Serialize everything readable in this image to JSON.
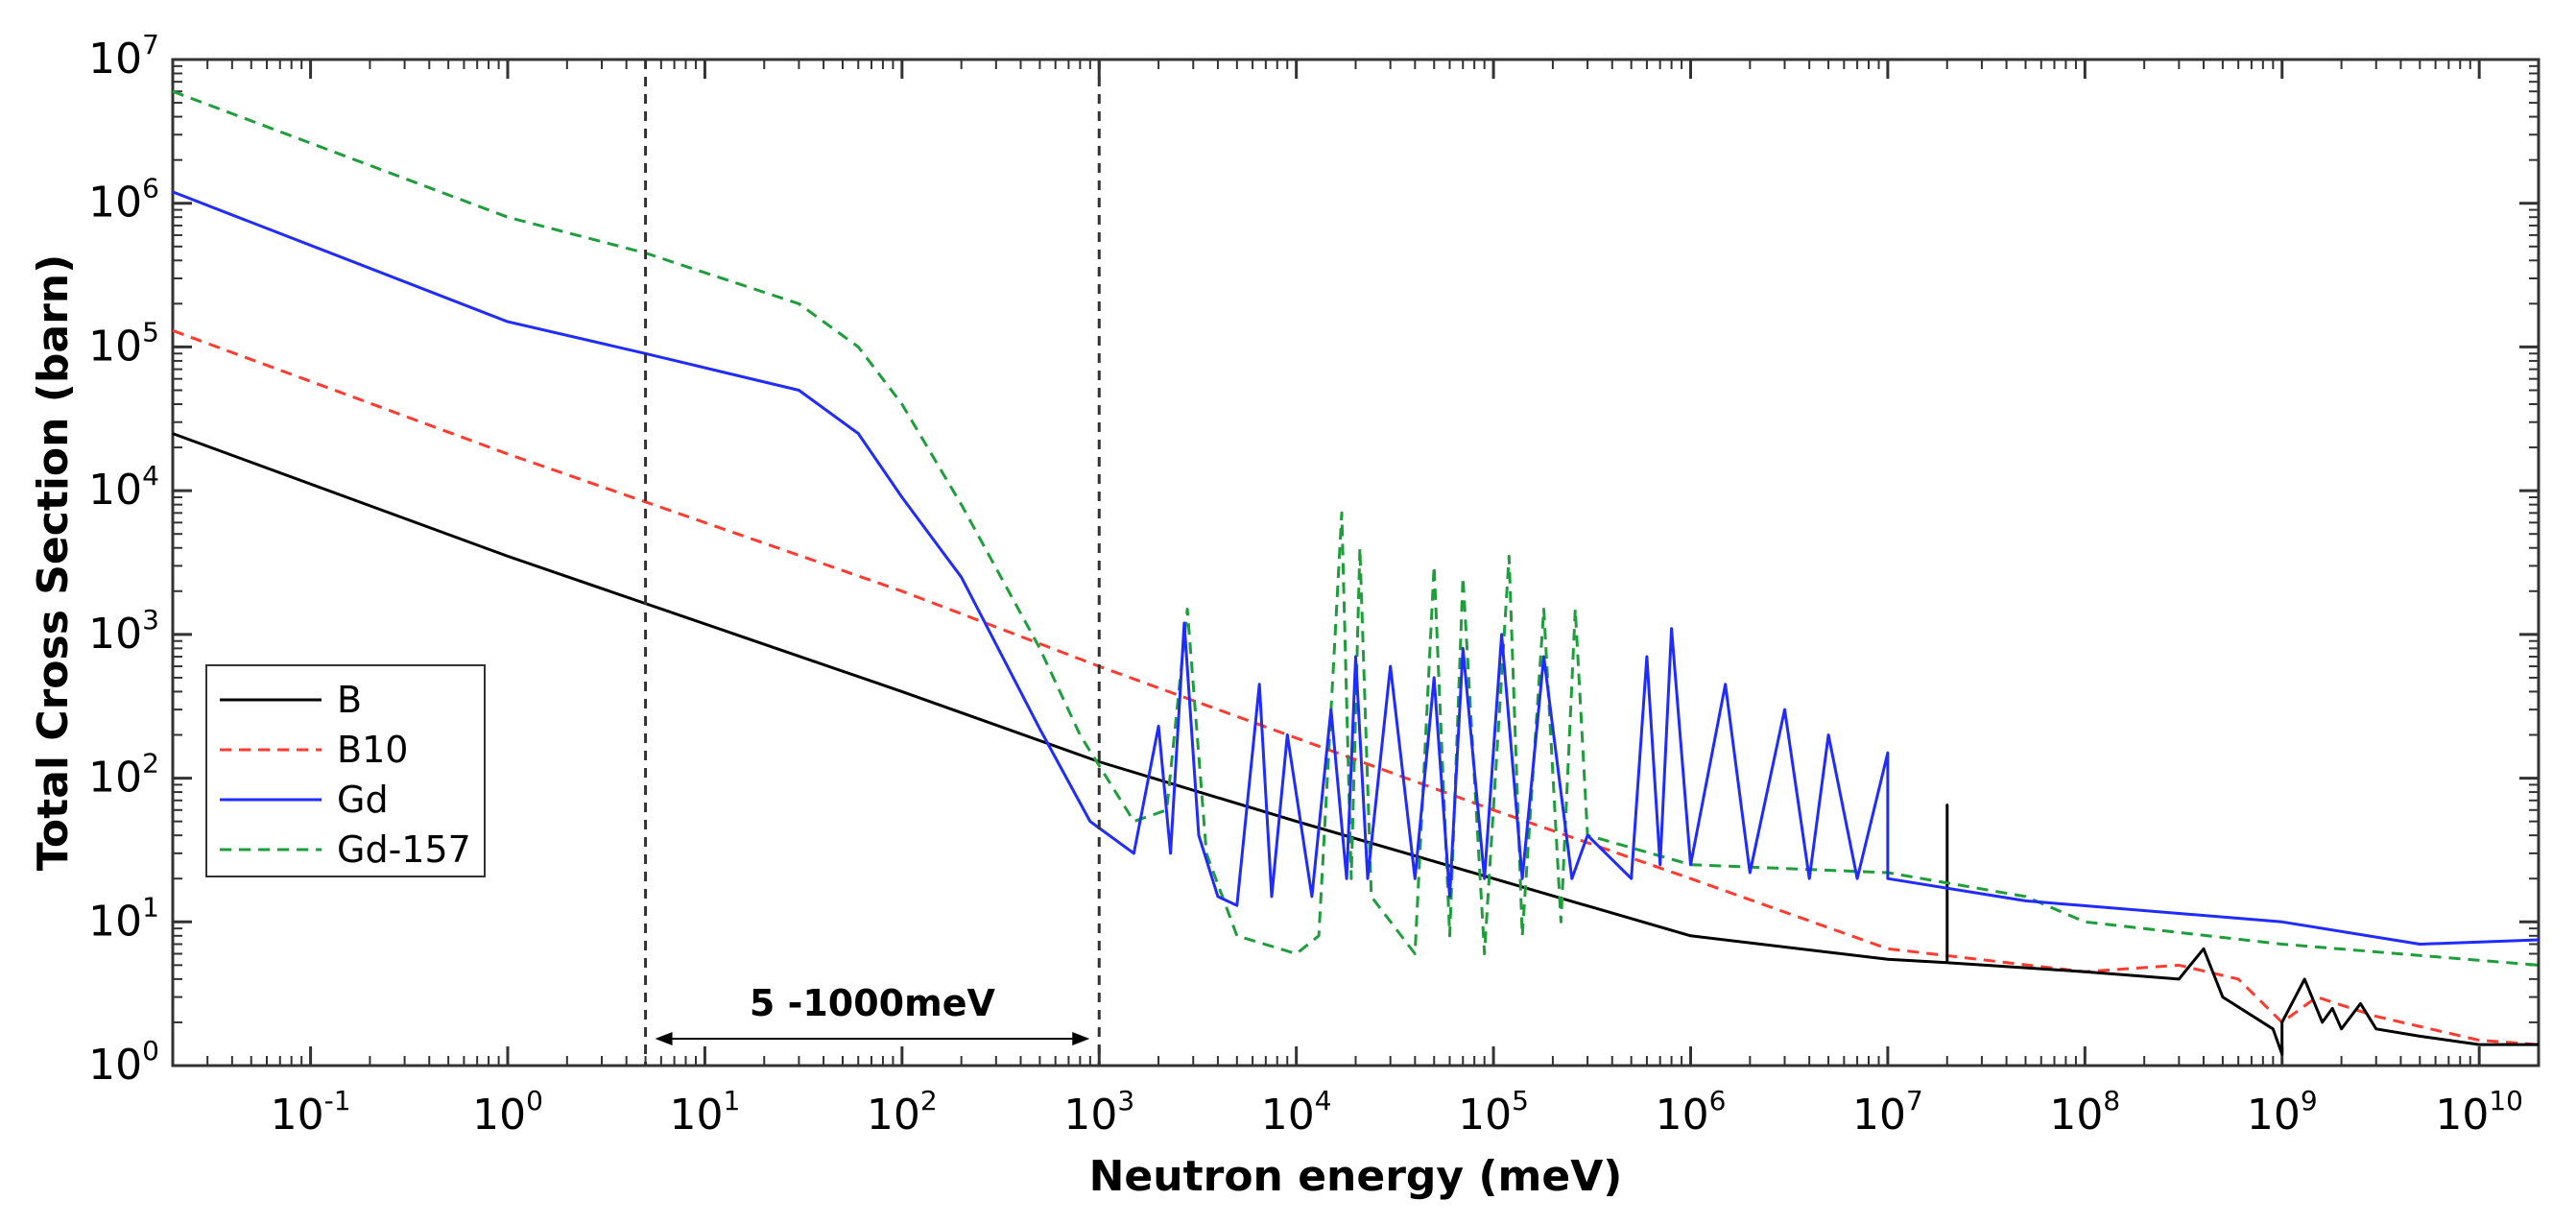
{
  "chart_data": {
    "type": "line",
    "x_scale": "log",
    "y_scale": "log",
    "xlabel": "Neutron energy (meV)",
    "ylabel": "Total Cross Section (barn)",
    "xlim": [
      0.02,
      20000000000
    ],
    "ylim": [
      1,
      10000000
    ],
    "x_ticks": [
      {
        "base": "10",
        "exp": "-1",
        "value": 0.1
      },
      {
        "base": "10",
        "exp": "0",
        "value": 1
      },
      {
        "base": "10",
        "exp": "1",
        "value": 10
      },
      {
        "base": "10",
        "exp": "2",
        "value": 100
      },
      {
        "base": "10",
        "exp": "3",
        "value": 1000
      },
      {
        "base": "10",
        "exp": "4",
        "value": 10000
      },
      {
        "base": "10",
        "exp": "5",
        "value": 100000
      },
      {
        "base": "10",
        "exp": "6",
        "value": 1000000
      },
      {
        "base": "10",
        "exp": "7",
        "value": 10000000
      },
      {
        "base": "10",
        "exp": "8",
        "value": 100000000
      },
      {
        "base": "10",
        "exp": "9",
        "value": 1000000000
      },
      {
        "base": "10",
        "exp": "10",
        "value": 10000000000
      }
    ],
    "y_ticks": [
      {
        "base": "10",
        "exp": "0",
        "value": 1
      },
      {
        "base": "10",
        "exp": "1",
        "value": 10
      },
      {
        "base": "10",
        "exp": "2",
        "value": 100
      },
      {
        "base": "10",
        "exp": "3",
        "value": 1000
      },
      {
        "base": "10",
        "exp": "4",
        "value": 10000
      },
      {
        "base": "10",
        "exp": "5",
        "value": 100000
      },
      {
        "base": "10",
        "exp": "6",
        "value": 1000000
      },
      {
        "base": "10",
        "exp": "7",
        "value": 10000000
      }
    ],
    "vertical_lines": [
      5,
      1000
    ],
    "annotation": {
      "text": "5 -1000meV",
      "from": 5,
      "to": 1000
    },
    "legend_position": "middle-left",
    "series": [
      {
        "name": "B",
        "color": "#000000",
        "dash": "solid",
        "points": [
          [
            0.02,
            25000
          ],
          [
            1,
            3500
          ],
          [
            100,
            400
          ],
          [
            1000,
            130
          ],
          [
            10000,
            50
          ],
          [
            100000,
            20
          ],
          [
            1000000,
            8
          ],
          [
            10000000,
            5.5
          ],
          [
            20000000,
            5.2
          ],
          [
            20000000,
            65
          ],
          [
            20000000,
            5.2
          ],
          [
            100000000,
            4.5
          ],
          [
            300000000,
            4
          ],
          [
            400000000,
            6.5
          ],
          [
            500000000,
            3
          ],
          [
            900000000,
            1.8
          ],
          [
            1000000000,
            1.2
          ],
          [
            1000000000,
            2
          ],
          [
            1300000000,
            4
          ],
          [
            1600000000,
            2
          ],
          [
            1800000000,
            2.5
          ],
          [
            2000000000,
            1.8
          ],
          [
            2500000000,
            2.7
          ],
          [
            3000000000,
            1.8
          ],
          [
            5000000000,
            1.6
          ],
          [
            10000000000,
            1.4
          ],
          [
            20000000000,
            1.4
          ]
        ]
      },
      {
        "name": "B10",
        "color": "#ff3b30",
        "dash": "dashed",
        "points": [
          [
            0.02,
            130000
          ],
          [
            1,
            18000
          ],
          [
            100,
            2000
          ],
          [
            1000,
            600
          ],
          [
            10000,
            190
          ],
          [
            100000,
            60
          ],
          [
            1000000,
            20
          ],
          [
            10000000,
            6.5
          ],
          [
            100000000,
            4.5
          ],
          [
            300000000,
            5
          ],
          [
            600000000,
            4
          ],
          [
            1000000000,
            2
          ],
          [
            1500000000,
            3
          ],
          [
            3000000000,
            2.2
          ],
          [
            10000000000,
            1.5
          ],
          [
            20000000000,
            1.4
          ]
        ]
      },
      {
        "name": "Gd",
        "color": "#1f2bff",
        "dash": "solid",
        "points": [
          [
            0.02,
            1200000
          ],
          [
            1,
            150000
          ],
          [
            5,
            90000
          ],
          [
            30,
            50000
          ],
          [
            60,
            25000
          ],
          [
            100,
            9000
          ],
          [
            200,
            2500
          ],
          [
            500,
            220
          ],
          [
            900,
            50
          ],
          [
            1500,
            30
          ],
          [
            2000,
            230
          ],
          [
            2300,
            30
          ],
          [
            2700,
            1200
          ],
          [
            3200,
            40
          ],
          [
            4000,
            15
          ],
          [
            5000,
            13
          ],
          [
            6500,
            450
          ],
          [
            7500,
            15
          ],
          [
            9000,
            200
          ],
          [
            12000,
            15
          ],
          [
            15000,
            300
          ],
          [
            18000,
            20
          ],
          [
            20000,
            700
          ],
          [
            23000,
            20
          ],
          [
            30000,
            600
          ],
          [
            40000,
            20
          ],
          [
            50000,
            500
          ],
          [
            60000,
            15
          ],
          [
            70000,
            800
          ],
          [
            90000,
            20
          ],
          [
            110000,
            1000
          ],
          [
            140000,
            20
          ],
          [
            180000,
            700
          ],
          [
            250000,
            20
          ],
          [
            300000,
            40
          ],
          [
            500000,
            20
          ],
          [
            600000,
            700
          ],
          [
            700000,
            25
          ],
          [
            800000,
            1100
          ],
          [
            1000000,
            25
          ],
          [
            1500000,
            450
          ],
          [
            2000000,
            22
          ],
          [
            3000000,
            300
          ],
          [
            4000000,
            20
          ],
          [
            5000000,
            200
          ],
          [
            7000000,
            20
          ],
          [
            10000000,
            150
          ],
          [
            10000000,
            20
          ],
          [
            50000000,
            14
          ],
          [
            1000000000,
            10
          ],
          [
            5000000000,
            7
          ],
          [
            20000000000,
            7.5
          ]
        ]
      },
      {
        "name": "Gd-157",
        "color": "#1e9e3a",
        "dash": "dashed",
        "points": [
          [
            0.02,
            6000000
          ],
          [
            1,
            800000
          ],
          [
            5,
            450000
          ],
          [
            30,
            200000
          ],
          [
            60,
            100000
          ],
          [
            100,
            40000
          ],
          [
            200,
            8000
          ],
          [
            500,
            800
          ],
          [
            800,
            200
          ],
          [
            1500,
            50
          ],
          [
            2200,
            60
          ],
          [
            2800,
            1500
          ],
          [
            3500,
            30
          ],
          [
            5000,
            8
          ],
          [
            10000,
            6
          ],
          [
            13000,
            8
          ],
          [
            17000,
            7000
          ],
          [
            19000,
            20
          ],
          [
            21000,
            4000
          ],
          [
            24000,
            15
          ],
          [
            40000,
            6
          ],
          [
            50000,
            3000
          ],
          [
            60000,
            8
          ],
          [
            70000,
            2500
          ],
          [
            90000,
            6
          ],
          [
            120000,
            3500
          ],
          [
            140000,
            8
          ],
          [
            180000,
            1500
          ],
          [
            220000,
            10
          ],
          [
            260000,
            1500
          ],
          [
            300000,
            40
          ],
          [
            1000000,
            25
          ],
          [
            10000000,
            22
          ],
          [
            50000000,
            15
          ],
          [
            100000000,
            10
          ],
          [
            1000000000,
            7
          ],
          [
            20000000000,
            5
          ]
        ]
      }
    ]
  }
}
